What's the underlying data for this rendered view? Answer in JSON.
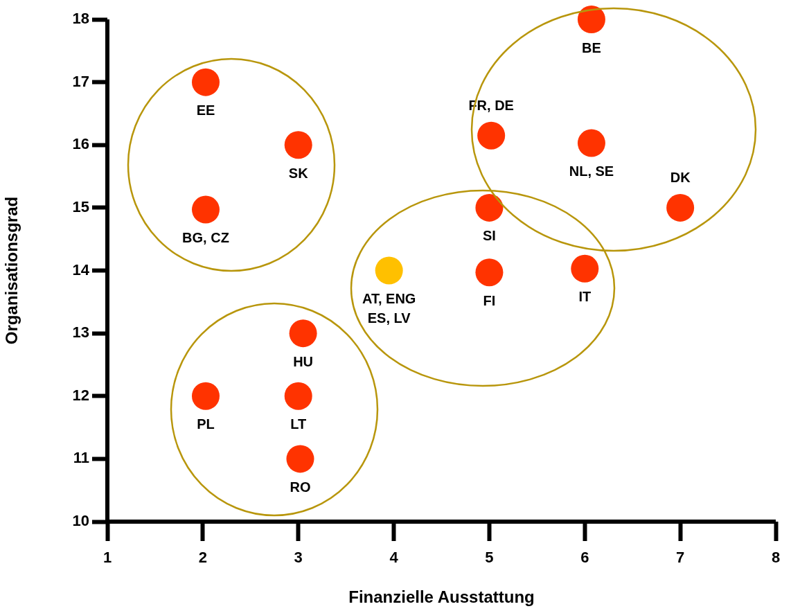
{
  "chart_data": {
    "type": "scatter",
    "xlabel": "Finanzielle Ausstattung",
    "ylabel": "Organisationsgrad",
    "xlim": [
      1,
      8
    ],
    "xticks": [
      1,
      2,
      3,
      4,
      5,
      6,
      7,
      8
    ],
    "ylim": [
      10,
      18
    ],
    "yticks": [
      10,
      11,
      12,
      13,
      14,
      15,
      16,
      17,
      18
    ],
    "grid": false,
    "legend": false,
    "marker": "circle",
    "series": [
      {
        "color": "#ff3300",
        "x": [
          2.03,
          3,
          2.03,
          3.05,
          2.03,
          3,
          3.02,
          5,
          5,
          5.02,
          6,
          6.07,
          6.07,
          7
        ],
        "values": [
          17,
          16,
          14.97,
          13,
          12,
          12,
          11,
          13.97,
          15,
          16.15,
          14.03,
          16.03,
          18,
          15
        ]
      },
      {
        "color": "#ffc000",
        "x": [
          3.95
        ],
        "values": [
          14
        ]
      }
    ],
    "annotations": [
      {
        "text": "EE",
        "x": 2.03,
        "y": 17
      },
      {
        "text": "SK",
        "x": 3,
        "y": 16
      },
      {
        "text": "BG, CZ",
        "x": 2.03,
        "y": 14.97
      },
      {
        "text": "HU",
        "x": 3.05,
        "y": 13
      },
      {
        "text": "PL",
        "x": 2.03,
        "y": 12
      },
      {
        "text": "LT",
        "x": 3,
        "y": 12
      },
      {
        "text": "RO",
        "x": 3.02,
        "y": 11
      },
      {
        "text": "FI",
        "x": 5,
        "y": 13.97
      },
      {
        "text": "SI",
        "x": 5,
        "y": 15
      },
      {
        "text": "FR, DE",
        "x": 5.02,
        "y": 16.15
      },
      {
        "text": "IT",
        "x": 6,
        "y": 14.03
      },
      {
        "text": "NL, SE",
        "x": 6.07,
        "y": 16.03
      },
      {
        "text": "BE",
        "x": 6.07,
        "y": 18
      },
      {
        "text": "DK",
        "x": 7,
        "y": 15
      },
      {
        "text": "AT, ENG\nES, LV",
        "x": 3.95,
        "y": 14
      }
    ]
  }
}
